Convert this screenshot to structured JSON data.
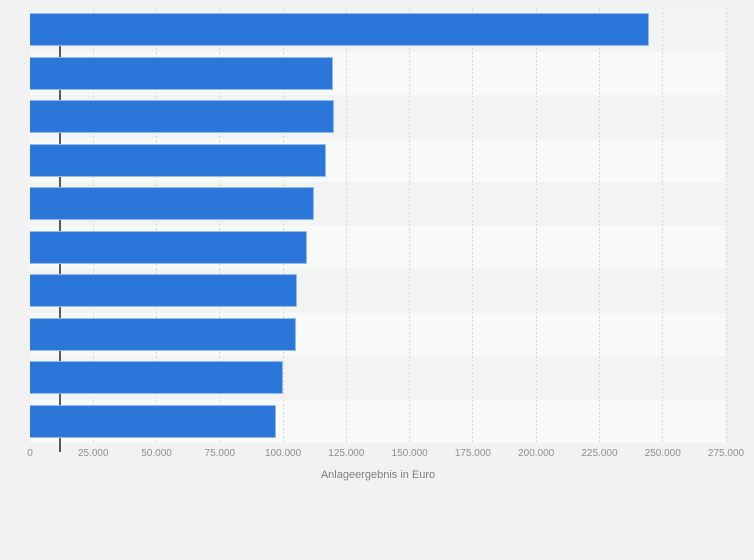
{
  "page": {
    "background_color": "#f2f2f2"
  },
  "chart_data": {
    "type": "bar",
    "orientation": "horizontal",
    "title": "",
    "xlabel": "Anlageergebnis in Euro",
    "ylabel": "",
    "categories": [
      "",
      "",
      "",
      "",
      "",
      "",
      "",
      "",
      "",
      ""
    ],
    "values": [
      244600,
      119700,
      120100,
      117000,
      112300,
      109400,
      105500,
      105100,
      100000,
      97200
    ],
    "xlim": [
      0,
      275000
    ],
    "xticks": [
      0,
      25000,
      50000,
      75000,
      100000,
      125000,
      150000,
      175000,
      200000,
      225000,
      250000,
      275000
    ],
    "xtick_labels": [
      "0",
      "25.000",
      "50.000",
      "75.000",
      "100.000",
      "125.000",
      "150.000",
      "175.000",
      "200.000",
      "225.000",
      "250.000",
      "275.000"
    ],
    "grid": "vertical-dashed",
    "legend_position": "none",
    "colors": {
      "bar": "#2b76d9",
      "axis_line": "#5a5a5a",
      "gridline": "#d7d9d9",
      "tick_label": "#8e8e8e",
      "axis_title": "#7f7f7f",
      "row_stripe_odd": "#f2f3f3",
      "row_stripe_even": "#f8f9f9"
    }
  }
}
